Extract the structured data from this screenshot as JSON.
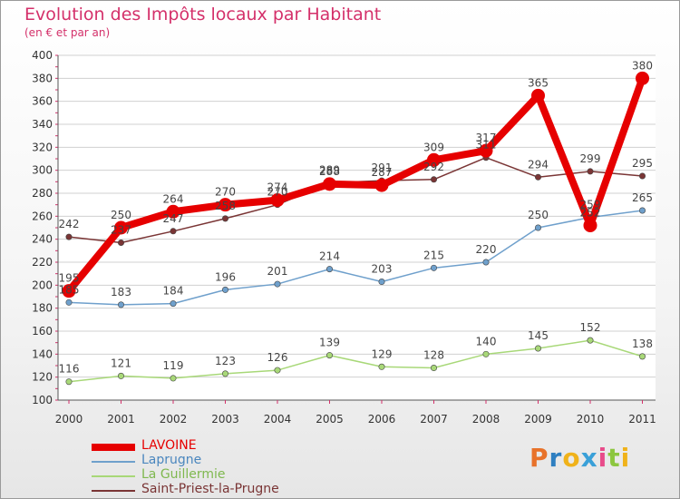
{
  "header": {
    "title": "Evolution des Impôts locaux par Habitant",
    "subtitle": "(en € et par an)"
  },
  "logo": {
    "letters": [
      {
        "ch": "P",
        "color": "#e8722a"
      },
      {
        "ch": "r",
        "color": "#2e7fc1"
      },
      {
        "ch": "o",
        "color": "#f0b21a"
      },
      {
        "ch": "x",
        "color": "#3aa0d8"
      },
      {
        "ch": "i",
        "color": "#e84b8a"
      },
      {
        "ch": "t",
        "color": "#8cc63f"
      },
      {
        "ch": "i",
        "color": "#f0b21a"
      }
    ]
  },
  "chart_data": {
    "type": "line",
    "title": "Evolution des Impôts locaux par Habitant",
    "subtitle": "(en € et par an)",
    "xlabel": "",
    "ylabel": "",
    "x": [
      "2000",
      "2001",
      "2002",
      "2003",
      "2004",
      "2005",
      "2006",
      "2007",
      "2008",
      "2009",
      "2010",
      "2011"
    ],
    "ylim": [
      100,
      400
    ],
    "yticks": [
      100,
      120,
      140,
      160,
      180,
      200,
      220,
      240,
      260,
      280,
      300,
      320,
      340,
      360,
      380,
      400
    ],
    "grid": "horizontal",
    "legend_position": "bottom-left",
    "series": [
      {
        "name": "LAVOINE",
        "color": "#e60000",
        "emphasis": true,
        "values": [
          195,
          250,
          264,
          270,
          274,
          288,
          287,
          309,
          317,
          365,
          252,
          380
        ]
      },
      {
        "name": "Laprugne",
        "color": "#6fa0cc",
        "emphasis": false,
        "values": [
          185,
          183,
          184,
          196,
          201,
          214,
          203,
          215,
          220,
          250,
          259,
          265
        ]
      },
      {
        "name": "La Guillermie",
        "color": "#a8d878",
        "emphasis": false,
        "values": [
          116,
          121,
          119,
          123,
          126,
          139,
          129,
          128,
          140,
          145,
          152,
          138
        ]
      },
      {
        "name": "Saint-Priest-la-Prugne",
        "color": "#7a3535",
        "emphasis": false,
        "values": [
          242,
          237,
          247,
          258,
          270,
          289,
          291,
          292,
          311,
          294,
          299,
          295
        ]
      }
    ]
  }
}
